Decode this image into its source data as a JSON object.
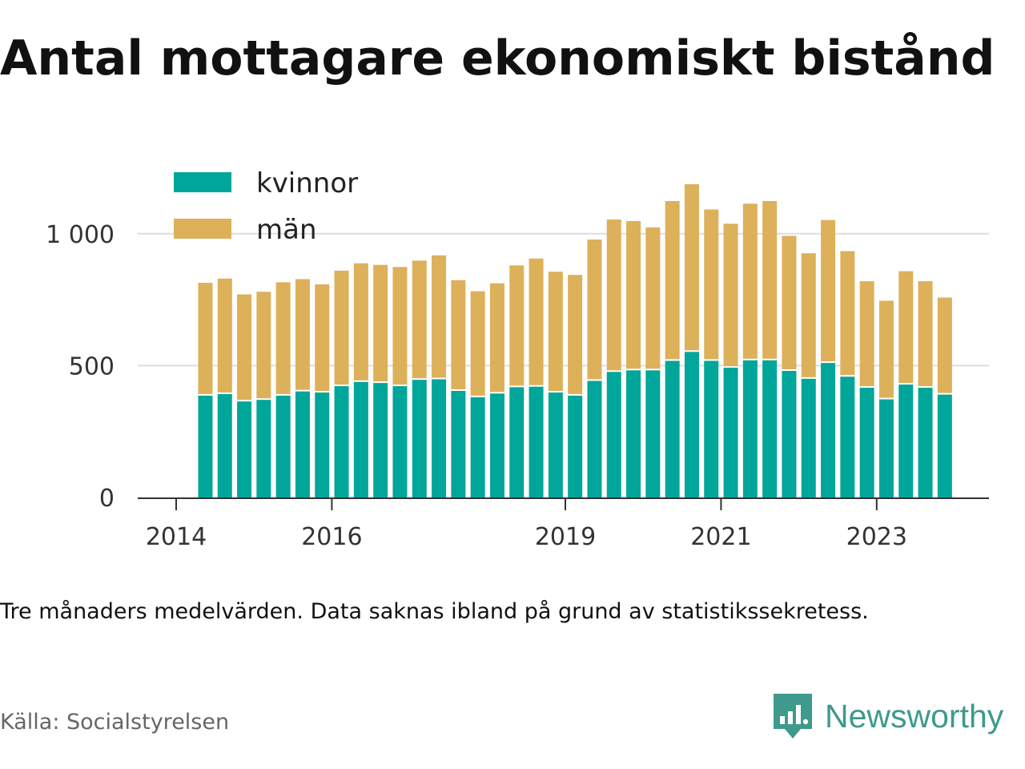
{
  "title": "Antal mottagare ekonomiskt bistånd",
  "note": "Tre månaders medelvärden. Data saknas ibland på grund av statistikssekretess.",
  "source": "Källa: Socialstyrelsen",
  "brand": {
    "name": "Newsworthy",
    "icon": "newsworthy-logo-icon",
    "color": "#3d9a8c"
  },
  "colors": {
    "kvinnor": "#00a699",
    "man": "#ddb05a",
    "grid": "#dddddd",
    "axis": "#333333"
  },
  "chart_data": {
    "type": "bar",
    "stacked": true,
    "title": "Antal mottagare ekonomiskt bistånd",
    "xlabel": "",
    "ylabel": "",
    "ylim": [
      0,
      1250
    ],
    "grid": true,
    "legend_position": "top-left",
    "y_ticks": [
      {
        "value": 0,
        "label": "0"
      },
      {
        "value": 500,
        "label": "500"
      },
      {
        "value": 1000,
        "label": "1 000"
      }
    ],
    "x_ticks": [
      {
        "value": 2014.0,
        "label": "2014"
      },
      {
        "value": 2016.0,
        "label": "2016"
      },
      {
        "value": 2019.0,
        "label": "2019"
      },
      {
        "value": 2021.0,
        "label": "2021"
      },
      {
        "value": 2023.0,
        "label": "2023"
      }
    ],
    "x": [
      2014.375,
      2014.625,
      2014.875,
      2015.125,
      2015.375,
      2015.625,
      2015.875,
      2016.125,
      2016.375,
      2016.625,
      2016.875,
      2017.125,
      2017.375,
      2017.625,
      2017.875,
      2018.125,
      2018.375,
      2018.625,
      2018.875,
      2019.125,
      2019.375,
      2019.625,
      2019.875,
      2020.125,
      2020.375,
      2020.625,
      2020.875,
      2021.125,
      2021.375,
      2021.625,
      2021.875,
      2022.125,
      2022.375,
      2022.625,
      2022.875,
      2023.125,
      2023.375,
      2023.625,
      2023.875
    ],
    "series": [
      {
        "name": "kvinnor",
        "values": [
          386,
          392,
          364,
          370,
          386,
          402,
          398,
          422,
          438,
          434,
          422,
          446,
          448,
          404,
          380,
          394,
          418,
          420,
          398,
          386,
          442,
          476,
          482,
          482,
          518,
          552,
          518,
          492,
          520,
          520,
          480,
          450,
          510,
          458,
          416,
          372,
          428,
          416,
          390
        ]
      },
      {
        "name": "män",
        "values": [
          428,
          438,
          406,
          410,
          430,
          426,
          410,
          438,
          450,
          448,
          452,
          452,
          470,
          420,
          402,
          418,
          462,
          486,
          458,
          458,
          536,
          578,
          566,
          542,
          606,
          636,
          574,
          546,
          594,
          604,
          512,
          476,
          542,
          476,
          404,
          374,
          430,
          404,
          368
        ]
      }
    ]
  }
}
